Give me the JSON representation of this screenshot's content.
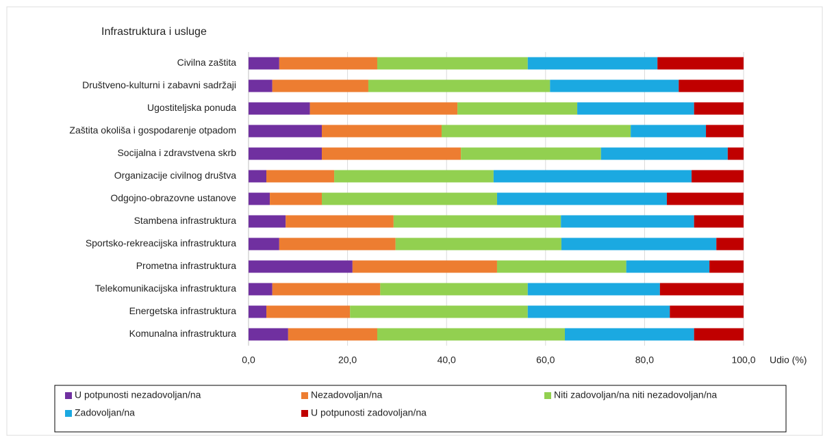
{
  "chart_data": {
    "type": "stacked-bar-horizontal",
    "title": "Infrastruktura i usluge",
    "x_label": "Udio (%)",
    "categories": [
      "Civilna zaštita",
      "Društveno-kulturni i zabavni sadržaji",
      "Ugostiteljska ponuda",
      "Zaštita okoliša i gospodarenje otpadom",
      "Socijalna i zdravstvena skrb",
      "Organizacije civilnog društva",
      "Odgojno-obrazovne ustanove",
      "Stambena infrastruktura",
      "Sportsko-rekreacijska infrastruktura",
      "Prometna infrastruktura",
      "Telekomunikacijska infrastruktura",
      "Energetska infrastruktura",
      "Komunalna infrastruktura"
    ],
    "series": [
      {
        "name": "U potpunosti nezadovoljan/na",
        "color": "#7030a0",
        "values": [
          6.2,
          4.8,
          12.4,
          14.8,
          14.8,
          3.6,
          4.3,
          7.5,
          6.2,
          21.0,
          4.8,
          3.6,
          8.0
        ]
      },
      {
        "name": "Nezadovoljan/na",
        "color": "#ed7d31",
        "values": [
          19.8,
          19.4,
          29.8,
          24.2,
          28.1,
          13.7,
          10.5,
          21.8,
          23.5,
          29.2,
          21.8,
          16.9,
          18.0
        ]
      },
      {
        "name": "Niti zadovoljan/na niti nezadovoljan/na",
        "color": "#92d050",
        "values": [
          30.4,
          36.7,
          24.2,
          38.2,
          28.3,
          32.2,
          35.4,
          33.8,
          33.5,
          26.1,
          29.8,
          35.9,
          37.9
        ]
      },
      {
        "name": "Zadovoljan/na",
        "color": "#1ba9e1",
        "values": [
          26.2,
          26.0,
          23.6,
          15.2,
          25.6,
          40.0,
          34.3,
          26.9,
          31.3,
          16.8,
          26.7,
          28.7,
          26.1
        ]
      },
      {
        "name": "U potpunosti zadovoljan/na",
        "color": "#c00000",
        "values": [
          17.4,
          13.1,
          10.0,
          7.6,
          3.2,
          10.5,
          15.5,
          10.0,
          5.5,
          6.9,
          16.9,
          14.9,
          10.0
        ]
      }
    ],
    "xlim": [
      0,
      100
    ],
    "xticks": [
      {
        "value": 0,
        "label": "0,0"
      },
      {
        "value": 20,
        "label": "20,0"
      },
      {
        "value": 40,
        "label": "40,0"
      },
      {
        "value": 60,
        "label": "60,0"
      },
      {
        "value": 80,
        "label": "80,0"
      },
      {
        "value": 100,
        "label": "100,0"
      }
    ],
    "grid": true
  }
}
